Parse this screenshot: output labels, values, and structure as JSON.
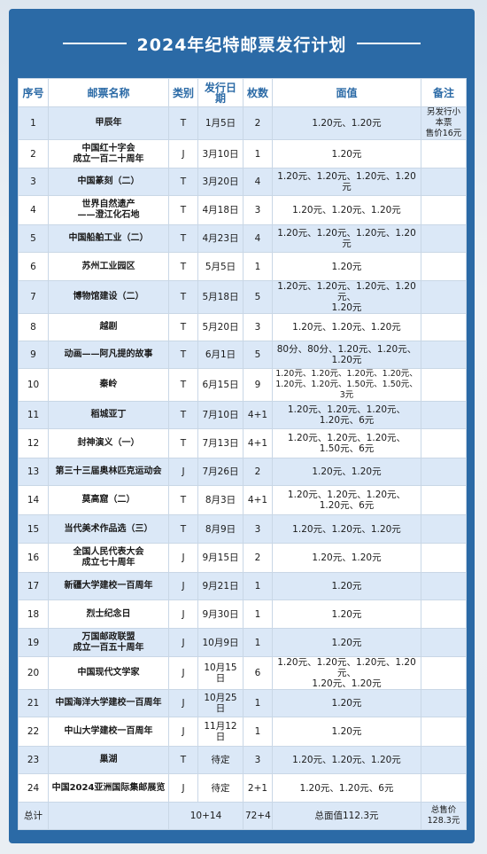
{
  "title": "2024年纪特邮票发行计划",
  "headers": [
    "序号",
    "邮票名称",
    "类别",
    "发行日期",
    "枚数",
    "面值",
    "备注"
  ],
  "rows": [
    {
      "no": "1",
      "name": [
        "甲辰年"
      ],
      "type": "T",
      "date": "1月5日",
      "count": "2",
      "value": [
        "1.20元、1.20元"
      ],
      "note": [
        "另发行小本票",
        "售价16元"
      ]
    },
    {
      "no": "2",
      "name": [
        "中国红十字会",
        "成立一百二十周年"
      ],
      "type": "J",
      "date": "3月10日",
      "count": "1",
      "value": [
        "1.20元"
      ],
      "note": []
    },
    {
      "no": "3",
      "name": [
        "中国篆刻（二）"
      ],
      "type": "T",
      "date": "3月20日",
      "count": "4",
      "value": [
        "1.20元、1.20元、1.20元、1.20元"
      ],
      "note": []
    },
    {
      "no": "4",
      "name": [
        "世界自然遗产",
        "——澄江化石地"
      ],
      "type": "T",
      "date": "4月18日",
      "count": "3",
      "value": [
        "1.20元、1.20元、1.20元"
      ],
      "note": []
    },
    {
      "no": "5",
      "name": [
        "中国船舶工业（二）"
      ],
      "type": "T",
      "date": "4月23日",
      "count": "4",
      "value": [
        "1.20元、1.20元、1.20元、1.20元"
      ],
      "note": []
    },
    {
      "no": "6",
      "name": [
        "苏州工业园区"
      ],
      "type": "T",
      "date": "5月5日",
      "count": "1",
      "value": [
        "1.20元"
      ],
      "note": []
    },
    {
      "no": "7",
      "name": [
        "博物馆建设（二）"
      ],
      "type": "T",
      "date": "5月18日",
      "count": "5",
      "value": [
        "1.20元、1.20元、1.20元、1.20元、",
        "1.20元"
      ],
      "note": []
    },
    {
      "no": "8",
      "name": [
        "越剧"
      ],
      "type": "T",
      "date": "5月20日",
      "count": "3",
      "value": [
        "1.20元、1.20元、1.20元"
      ],
      "note": []
    },
    {
      "no": "9",
      "name": [
        "动画——阿凡提的故事"
      ],
      "type": "T",
      "date": "6月1日",
      "count": "5",
      "value": [
        "80分、80分、1.20元、1.20元、",
        "1.20元"
      ],
      "note": []
    },
    {
      "no": "10",
      "name": [
        "秦岭"
      ],
      "type": "T",
      "date": "6月15日",
      "count": "9",
      "value": [
        "1.20元、1.20元、1.20元、1.20元、",
        "1.20元、1.20元、1.50元、1.50元、3元"
      ],
      "note": []
    },
    {
      "no": "11",
      "name": [
        "稻城亚丁"
      ],
      "type": "T",
      "date": "7月10日",
      "count": "4+1",
      "value": [
        "1.20元、1.20元、1.20元、",
        "1.20元、6元"
      ],
      "note": []
    },
    {
      "no": "12",
      "name": [
        "封神演义（一）"
      ],
      "type": "T",
      "date": "7月13日",
      "count": "4+1",
      "value": [
        "1.20元、1.20元、1.20元、",
        "1.50元、6元"
      ],
      "note": []
    },
    {
      "no": "13",
      "name": [
        "第三十三届奥林匹克运动会"
      ],
      "type": "J",
      "date": "7月26日",
      "count": "2",
      "value": [
        "1.20元、1.20元"
      ],
      "note": []
    },
    {
      "no": "14",
      "name": [
        "莫高窟（二）"
      ],
      "type": "T",
      "date": "8月3日",
      "count": "4+1",
      "value": [
        "1.20元、1.20元、1.20元、",
        "1.20元、6元"
      ],
      "note": []
    },
    {
      "no": "15",
      "name": [
        "当代美术作品选（三）"
      ],
      "type": "T",
      "date": "8月9日",
      "count": "3",
      "value": [
        "1.20元、1.20元、1.20元"
      ],
      "note": []
    },
    {
      "no": "16",
      "name": [
        "全国人民代表大会",
        "成立七十周年"
      ],
      "type": "J",
      "date": "9月15日",
      "count": "2",
      "value": [
        "1.20元、1.20元"
      ],
      "note": []
    },
    {
      "no": "17",
      "name": [
        "新疆大学建校一百周年"
      ],
      "type": "J",
      "date": "9月21日",
      "count": "1",
      "value": [
        "1.20元"
      ],
      "note": []
    },
    {
      "no": "18",
      "name": [
        "烈士纪念日"
      ],
      "type": "J",
      "date": "9月30日",
      "count": "1",
      "value": [
        "1.20元"
      ],
      "note": []
    },
    {
      "no": "19",
      "name": [
        "万国邮政联盟",
        "成立一百五十周年"
      ],
      "type": "J",
      "date": "10月9日",
      "count": "1",
      "value": [
        "1.20元"
      ],
      "note": []
    },
    {
      "no": "20",
      "name": [
        "中国现代文学家"
      ],
      "type": "J",
      "date": "10月15日",
      "count": "6",
      "value": [
        "1.20元、1.20元、1.20元、1.20元、",
        "1.20元、1.20元"
      ],
      "note": []
    },
    {
      "no": "21",
      "name": [
        "中国海洋大学建校一百周年"
      ],
      "type": "J",
      "date": "10月25日",
      "count": "1",
      "value": [
        "1.20元"
      ],
      "note": []
    },
    {
      "no": "22",
      "name": [
        "中山大学建校一百周年"
      ],
      "type": "J",
      "date": "11月12日",
      "count": "1",
      "value": [
        "1.20元"
      ],
      "note": []
    },
    {
      "no": "23",
      "name": [
        "巢湖"
      ],
      "type": "T",
      "date": "待定",
      "count": "3",
      "value": [
        "1.20元、1.20元、1.20元"
      ],
      "note": []
    },
    {
      "no": "24",
      "name": [
        "中国2024亚洲国际集邮展览"
      ],
      "type": "J",
      "date": "待定",
      "count": "2+1",
      "value": [
        "1.20元、1.20元、6元"
      ],
      "note": []
    }
  ],
  "total": {
    "label": "总计",
    "type": "10+14",
    "count": "72+4",
    "value": "总面值112.3元",
    "note": [
      "总售价",
      "128.3元"
    ]
  }
}
